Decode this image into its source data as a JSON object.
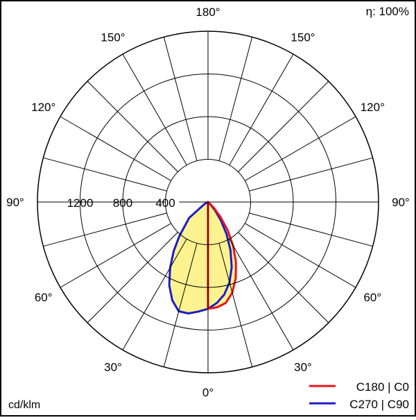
{
  "chart_data": {
    "type": "polar",
    "efficiency_label": "η: 100%",
    "unit_label": "cd/klm",
    "radial_ticks": [
      400,
      800,
      1200
    ],
    "radial_max": 1600,
    "angle_labels": [
      {
        "text": "0°",
        "angle": 0
      },
      {
        "text": "30°",
        "angle": 30
      },
      {
        "text": "30°",
        "angle": -30
      },
      {
        "text": "60°",
        "angle": 60
      },
      {
        "text": "60°",
        "angle": -60
      },
      {
        "text": "90°",
        "angle": 90
      },
      {
        "text": "90°",
        "angle": -90
      },
      {
        "text": "120°",
        "angle": 120
      },
      {
        "text": "120°",
        "angle": -120
      },
      {
        "text": "150°",
        "angle": 150
      },
      {
        "text": "150°",
        "angle": -150
      },
      {
        "text": "180°",
        "angle": 180
      }
    ],
    "series": [
      {
        "name": "C180 | C0",
        "color": "#e8141c",
        "fill": "#fcf290",
        "points": [
          {
            "angle": 0,
            "value": 1000
          },
          {
            "angle": 5,
            "value": 990
          },
          {
            "angle": 10,
            "value": 960
          },
          {
            "angle": 15,
            "value": 880
          },
          {
            "angle": 20,
            "value": 760
          },
          {
            "angle": 25,
            "value": 620
          },
          {
            "angle": 30,
            "value": 470
          },
          {
            "angle": 35,
            "value": 320
          },
          {
            "angle": 40,
            "value": 180
          },
          {
            "angle": 45,
            "value": 80
          },
          {
            "angle": 50,
            "value": 20
          },
          {
            "angle": 55,
            "value": 0
          }
        ]
      },
      {
        "name": "C270 | C90",
        "color": "#1c1cc8",
        "fill": "#fcf290",
        "points": [
          {
            "angle": -90,
            "value": 0
          },
          {
            "angle": -60,
            "value": 40
          },
          {
            "angle": -50,
            "value": 230
          },
          {
            "angle": -40,
            "value": 420
          },
          {
            "angle": -35,
            "value": 560
          },
          {
            "angle": -30,
            "value": 710
          },
          {
            "angle": -25,
            "value": 860
          },
          {
            "angle": -20,
            "value": 980
          },
          {
            "angle": -15,
            "value": 1060
          },
          {
            "angle": -10,
            "value": 1060
          },
          {
            "angle": -5,
            "value": 1030
          },
          {
            "angle": 0,
            "value": 1000
          },
          {
            "angle": 5,
            "value": 950
          },
          {
            "angle": 10,
            "value": 880
          },
          {
            "angle": 15,
            "value": 780
          },
          {
            "angle": 20,
            "value": 650
          },
          {
            "angle": 25,
            "value": 500
          },
          {
            "angle": 30,
            "value": 350
          },
          {
            "angle": 35,
            "value": 210
          },
          {
            "angle": 40,
            "value": 100
          },
          {
            "angle": 45,
            "value": 30
          },
          {
            "angle": 50,
            "value": 0
          }
        ]
      }
    ],
    "legend_position": "bottom-right"
  }
}
